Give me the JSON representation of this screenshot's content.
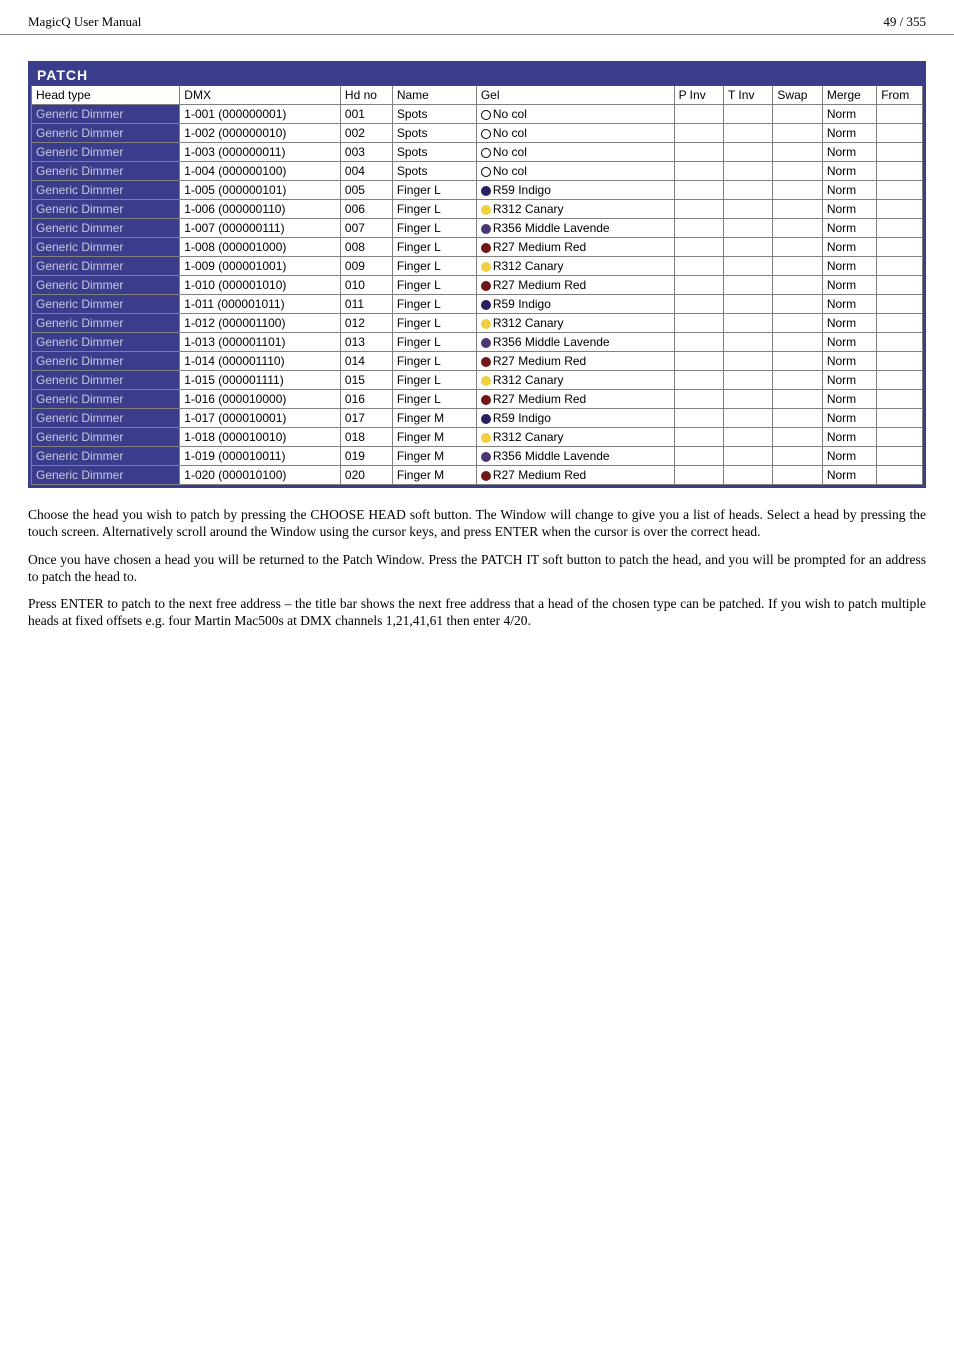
{
  "header": {
    "left": "MagicQ User Manual",
    "right": "49 / 355"
  },
  "panel": {
    "title": "PATCH"
  },
  "columns": {
    "head_type": "Head type",
    "dmx": "DMX",
    "hdno": "Hd no",
    "name": "Name",
    "gel": "Gel",
    "pinv": "P Inv",
    "tinv": "T Inv",
    "swap": "Swap",
    "merge": "Merge",
    "from": "From"
  },
  "rows": [
    {
      "head": "Generic Dimmer",
      "dmx": "1-001 (000000001)",
      "hdno": "001",
      "name": "Spots",
      "gel": "No col",
      "swatch": "#ffffff",
      "swatch_border": "#000000",
      "merge": "Norm"
    },
    {
      "head": "Generic Dimmer",
      "dmx": "1-002 (000000010)",
      "hdno": "002",
      "name": "Spots",
      "gel": "No col",
      "swatch": "#ffffff",
      "swatch_border": "#000000",
      "merge": "Norm"
    },
    {
      "head": "Generic Dimmer",
      "dmx": "1-003 (000000011)",
      "hdno": "003",
      "name": "Spots",
      "gel": "No col",
      "swatch": "#ffffff",
      "swatch_border": "#000000",
      "merge": "Norm"
    },
    {
      "head": "Generic Dimmer",
      "dmx": "1-004 (000000100)",
      "hdno": "004",
      "name": "Spots",
      "gel": "No col",
      "swatch": "#ffffff",
      "swatch_border": "#000000",
      "merge": "Norm"
    },
    {
      "head": "Generic Dimmer",
      "dmx": "1-005 (000000101)",
      "hdno": "005",
      "name": "Finger L",
      "gel": "R59 Indigo",
      "swatch": "#2b2060",
      "swatch_border": "#2b2060",
      "merge": "Norm"
    },
    {
      "head": "Generic Dimmer",
      "dmx": "1-006 (000000110)",
      "hdno": "006",
      "name": "Finger L",
      "gel": "R312 Canary",
      "swatch": "#f0d040",
      "swatch_border": "#f0d040",
      "merge": "Norm"
    },
    {
      "head": "Generic Dimmer",
      "dmx": "1-007 (000000111)",
      "hdno": "007",
      "name": "Finger L",
      "gel": "R356 Middle Lavende",
      "swatch": "#4a3870",
      "swatch_border": "#4a3870",
      "merge": "Norm"
    },
    {
      "head": "Generic Dimmer",
      "dmx": "1-008 (000001000)",
      "hdno": "008",
      "name": "Finger L",
      "gel": "R27 Medium Red",
      "swatch": "#701818",
      "swatch_border": "#701818",
      "merge": "Norm"
    },
    {
      "head": "Generic Dimmer",
      "dmx": "1-009 (000001001)",
      "hdno": "009",
      "name": "Finger L",
      "gel": "R312 Canary",
      "swatch": "#f0d040",
      "swatch_border": "#f0d040",
      "merge": "Norm"
    },
    {
      "head": "Generic Dimmer",
      "dmx": "1-010 (000001010)",
      "hdno": "010",
      "name": "Finger L",
      "gel": "R27 Medium Red",
      "swatch": "#701818",
      "swatch_border": "#701818",
      "merge": "Norm"
    },
    {
      "head": "Generic Dimmer",
      "dmx": "1-011 (000001011)",
      "hdno": "011",
      "name": "Finger L",
      "gel": "R59 Indigo",
      "swatch": "#2b2060",
      "swatch_border": "#2b2060",
      "merge": "Norm"
    },
    {
      "head": "Generic Dimmer",
      "dmx": "1-012 (000001100)",
      "hdno": "012",
      "name": "Finger L",
      "gel": "R312 Canary",
      "swatch": "#f0d040",
      "swatch_border": "#f0d040",
      "merge": "Norm"
    },
    {
      "head": "Generic Dimmer",
      "dmx": "1-013 (000001101)",
      "hdno": "013",
      "name": "Finger L",
      "gel": "R356 Middle Lavende",
      "swatch": "#4a3870",
      "swatch_border": "#4a3870",
      "merge": "Norm"
    },
    {
      "head": "Generic Dimmer",
      "dmx": "1-014 (000001110)",
      "hdno": "014",
      "name": "Finger L",
      "gel": "R27 Medium Red",
      "swatch": "#701818",
      "swatch_border": "#701818",
      "merge": "Norm"
    },
    {
      "head": "Generic Dimmer",
      "dmx": "1-015 (000001111)",
      "hdno": "015",
      "name": "Finger L",
      "gel": "R312 Canary",
      "swatch": "#f0d040",
      "swatch_border": "#f0d040",
      "merge": "Norm"
    },
    {
      "head": "Generic Dimmer",
      "dmx": "1-016 (000010000)",
      "hdno": "016",
      "name": "Finger L",
      "gel": "R27 Medium Red",
      "swatch": "#701818",
      "swatch_border": "#701818",
      "merge": "Norm"
    },
    {
      "head": "Generic Dimmer",
      "dmx": "1-017 (000010001)",
      "hdno": "017",
      "name": "Finger M",
      "gel": "R59 Indigo",
      "swatch": "#2b2060",
      "swatch_border": "#2b2060",
      "merge": "Norm"
    },
    {
      "head": "Generic Dimmer",
      "dmx": "1-018 (000010010)",
      "hdno": "018",
      "name": "Finger M",
      "gel": "R312 Canary",
      "swatch": "#f0d040",
      "swatch_border": "#f0d040",
      "merge": "Norm"
    },
    {
      "head": "Generic Dimmer",
      "dmx": "1-019 (000010011)",
      "hdno": "019",
      "name": "Finger M",
      "gel": "R356 Middle Lavende",
      "swatch": "#4a3870",
      "swatch_border": "#4a3870",
      "merge": "Norm"
    },
    {
      "head": "Generic Dimmer",
      "dmx": "1-020 (000010100)",
      "hdno": "020",
      "name": "Finger M",
      "gel": "R27 Medium Red",
      "swatch": "#701818",
      "swatch_border": "#701818",
      "merge": "Norm"
    }
  ],
  "body": {
    "p1": "Choose the head you wish to patch by pressing the CHOOSE HEAD soft button. The Window will change to give you a list of heads. Select a head by pressing the touch screen. Alternatively scroll around the Window using the cursor keys, and press ENTER when the cursor is over the correct head.",
    "p2": "Once you have chosen a head you will be returned to the Patch Window. Press the PATCH IT soft button to patch the head, and you will be prompted for an address to patch the head to.",
    "p3": "Press ENTER to patch to the next free address – the title bar shows the next free address that a head of the chosen type can be patched. If you wish to patch multiple heads at fixed offsets e.g. four Martin Mac500s at DMX channels 1,21,41,61 then enter 4/20."
  }
}
